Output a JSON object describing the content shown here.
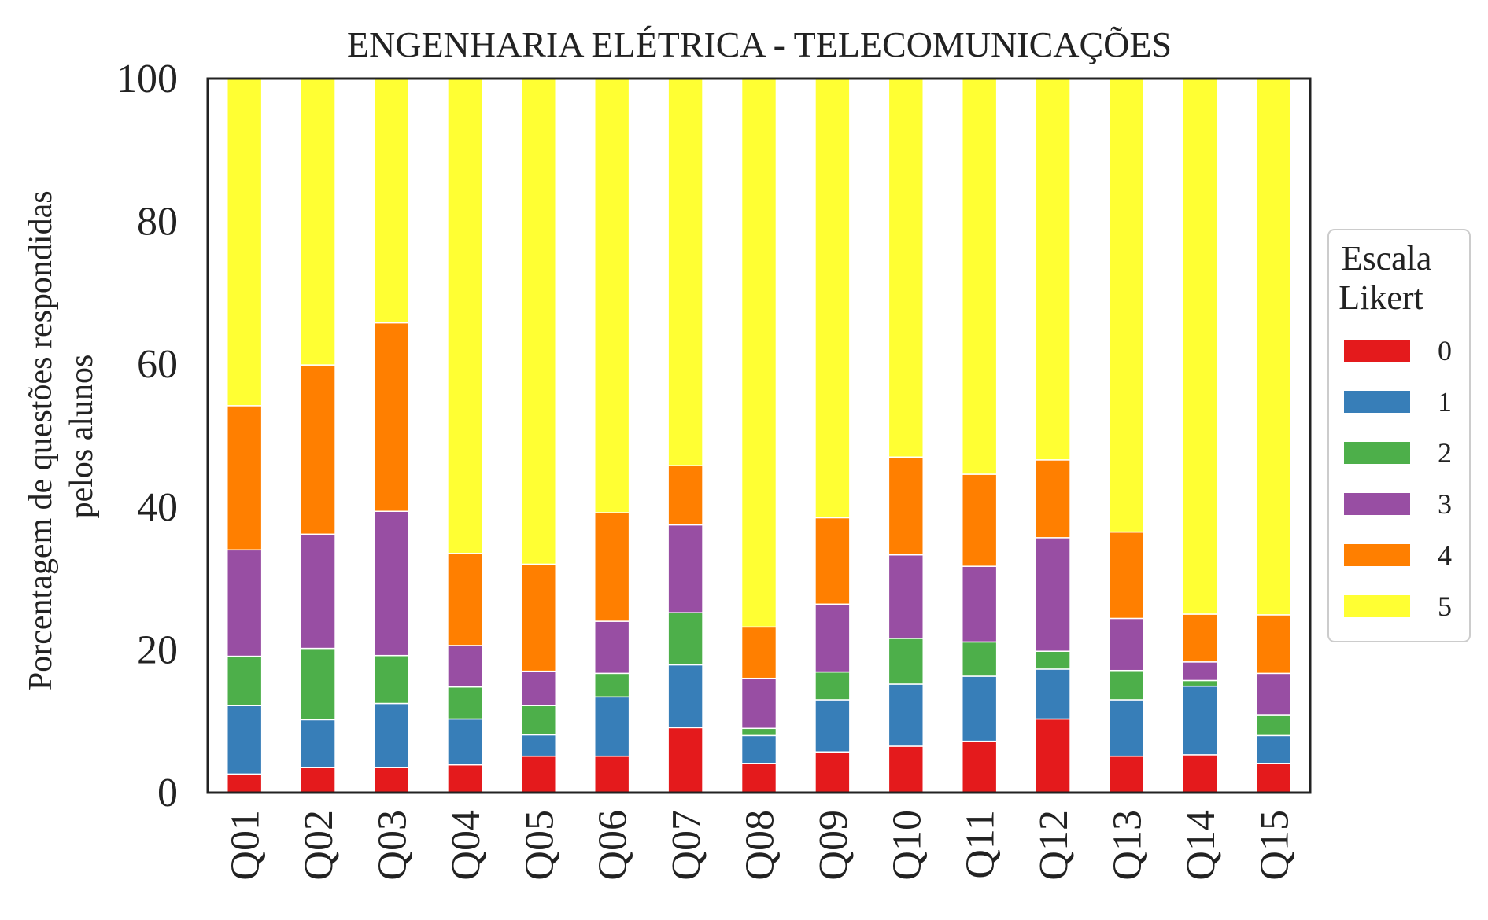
{
  "chart_data": {
    "type": "bar",
    "stacked": true,
    "title": "ENGENHARIA ELÉTRICA - TELECOMUNICAÇÕES",
    "xlabel": "",
    "ylabel_lines": [
      "Porcentagem de questões respondidas",
      "pelos alunos"
    ],
    "ylim": [
      0,
      100
    ],
    "yticks": [
      "0",
      "20",
      "40",
      "60",
      "80",
      "100"
    ],
    "grid": false,
    "legend": {
      "title_lines": [
        "Escala",
        "Likert"
      ],
      "position": "right"
    },
    "categories": [
      "Q01",
      "Q02",
      "Q03",
      "Q04",
      "Q05",
      "Q06",
      "Q07",
      "Q08",
      "Q09",
      "Q10",
      "Q11",
      "Q12",
      "Q13",
      "Q14",
      "Q15"
    ],
    "series": [
      {
        "name": "0",
        "color": "#e41a1c",
        "values": [
          2.6,
          3.5,
          3.5,
          3.9,
          5.1,
          5.1,
          9.1,
          4.1,
          5.7,
          6.5,
          7.2,
          10.3,
          5.1,
          5.3,
          4.1
        ]
      },
      {
        "name": "1",
        "color": "#377eb8",
        "values": [
          9.6,
          6.7,
          9.0,
          6.4,
          3.0,
          8.3,
          8.8,
          3.9,
          7.3,
          8.7,
          9.1,
          7.0,
          7.9,
          9.6,
          3.9
        ]
      },
      {
        "name": "2",
        "color": "#4daf4a",
        "values": [
          6.9,
          10.0,
          6.7,
          4.5,
          4.1,
          3.3,
          7.3,
          1.0,
          3.9,
          6.4,
          4.8,
          2.5,
          4.1,
          0.8,
          2.9
        ]
      },
      {
        "name": "3",
        "color": "#984ea3",
        "values": [
          14.9,
          16.0,
          20.2,
          5.8,
          4.8,
          7.3,
          12.3,
          7.0,
          9.5,
          11.7,
          10.6,
          15.9,
          7.3,
          2.6,
          5.8
        ]
      },
      {
        "name": "4",
        "color": "#ff7f00",
        "values": [
          20.2,
          23.7,
          26.4,
          12.9,
          15.0,
          15.2,
          8.3,
          7.2,
          12.1,
          13.7,
          12.9,
          10.9,
          12.1,
          6.7,
          8.2
        ]
      },
      {
        "name": "5",
        "color": "#ffff33",
        "values": [
          45.8,
          40.1,
          34.2,
          66.5,
          68.0,
          60.8,
          54.2,
          76.8,
          61.5,
          53.0,
          55.4,
          53.4,
          63.5,
          75.0,
          75.1
        ]
      }
    ]
  }
}
